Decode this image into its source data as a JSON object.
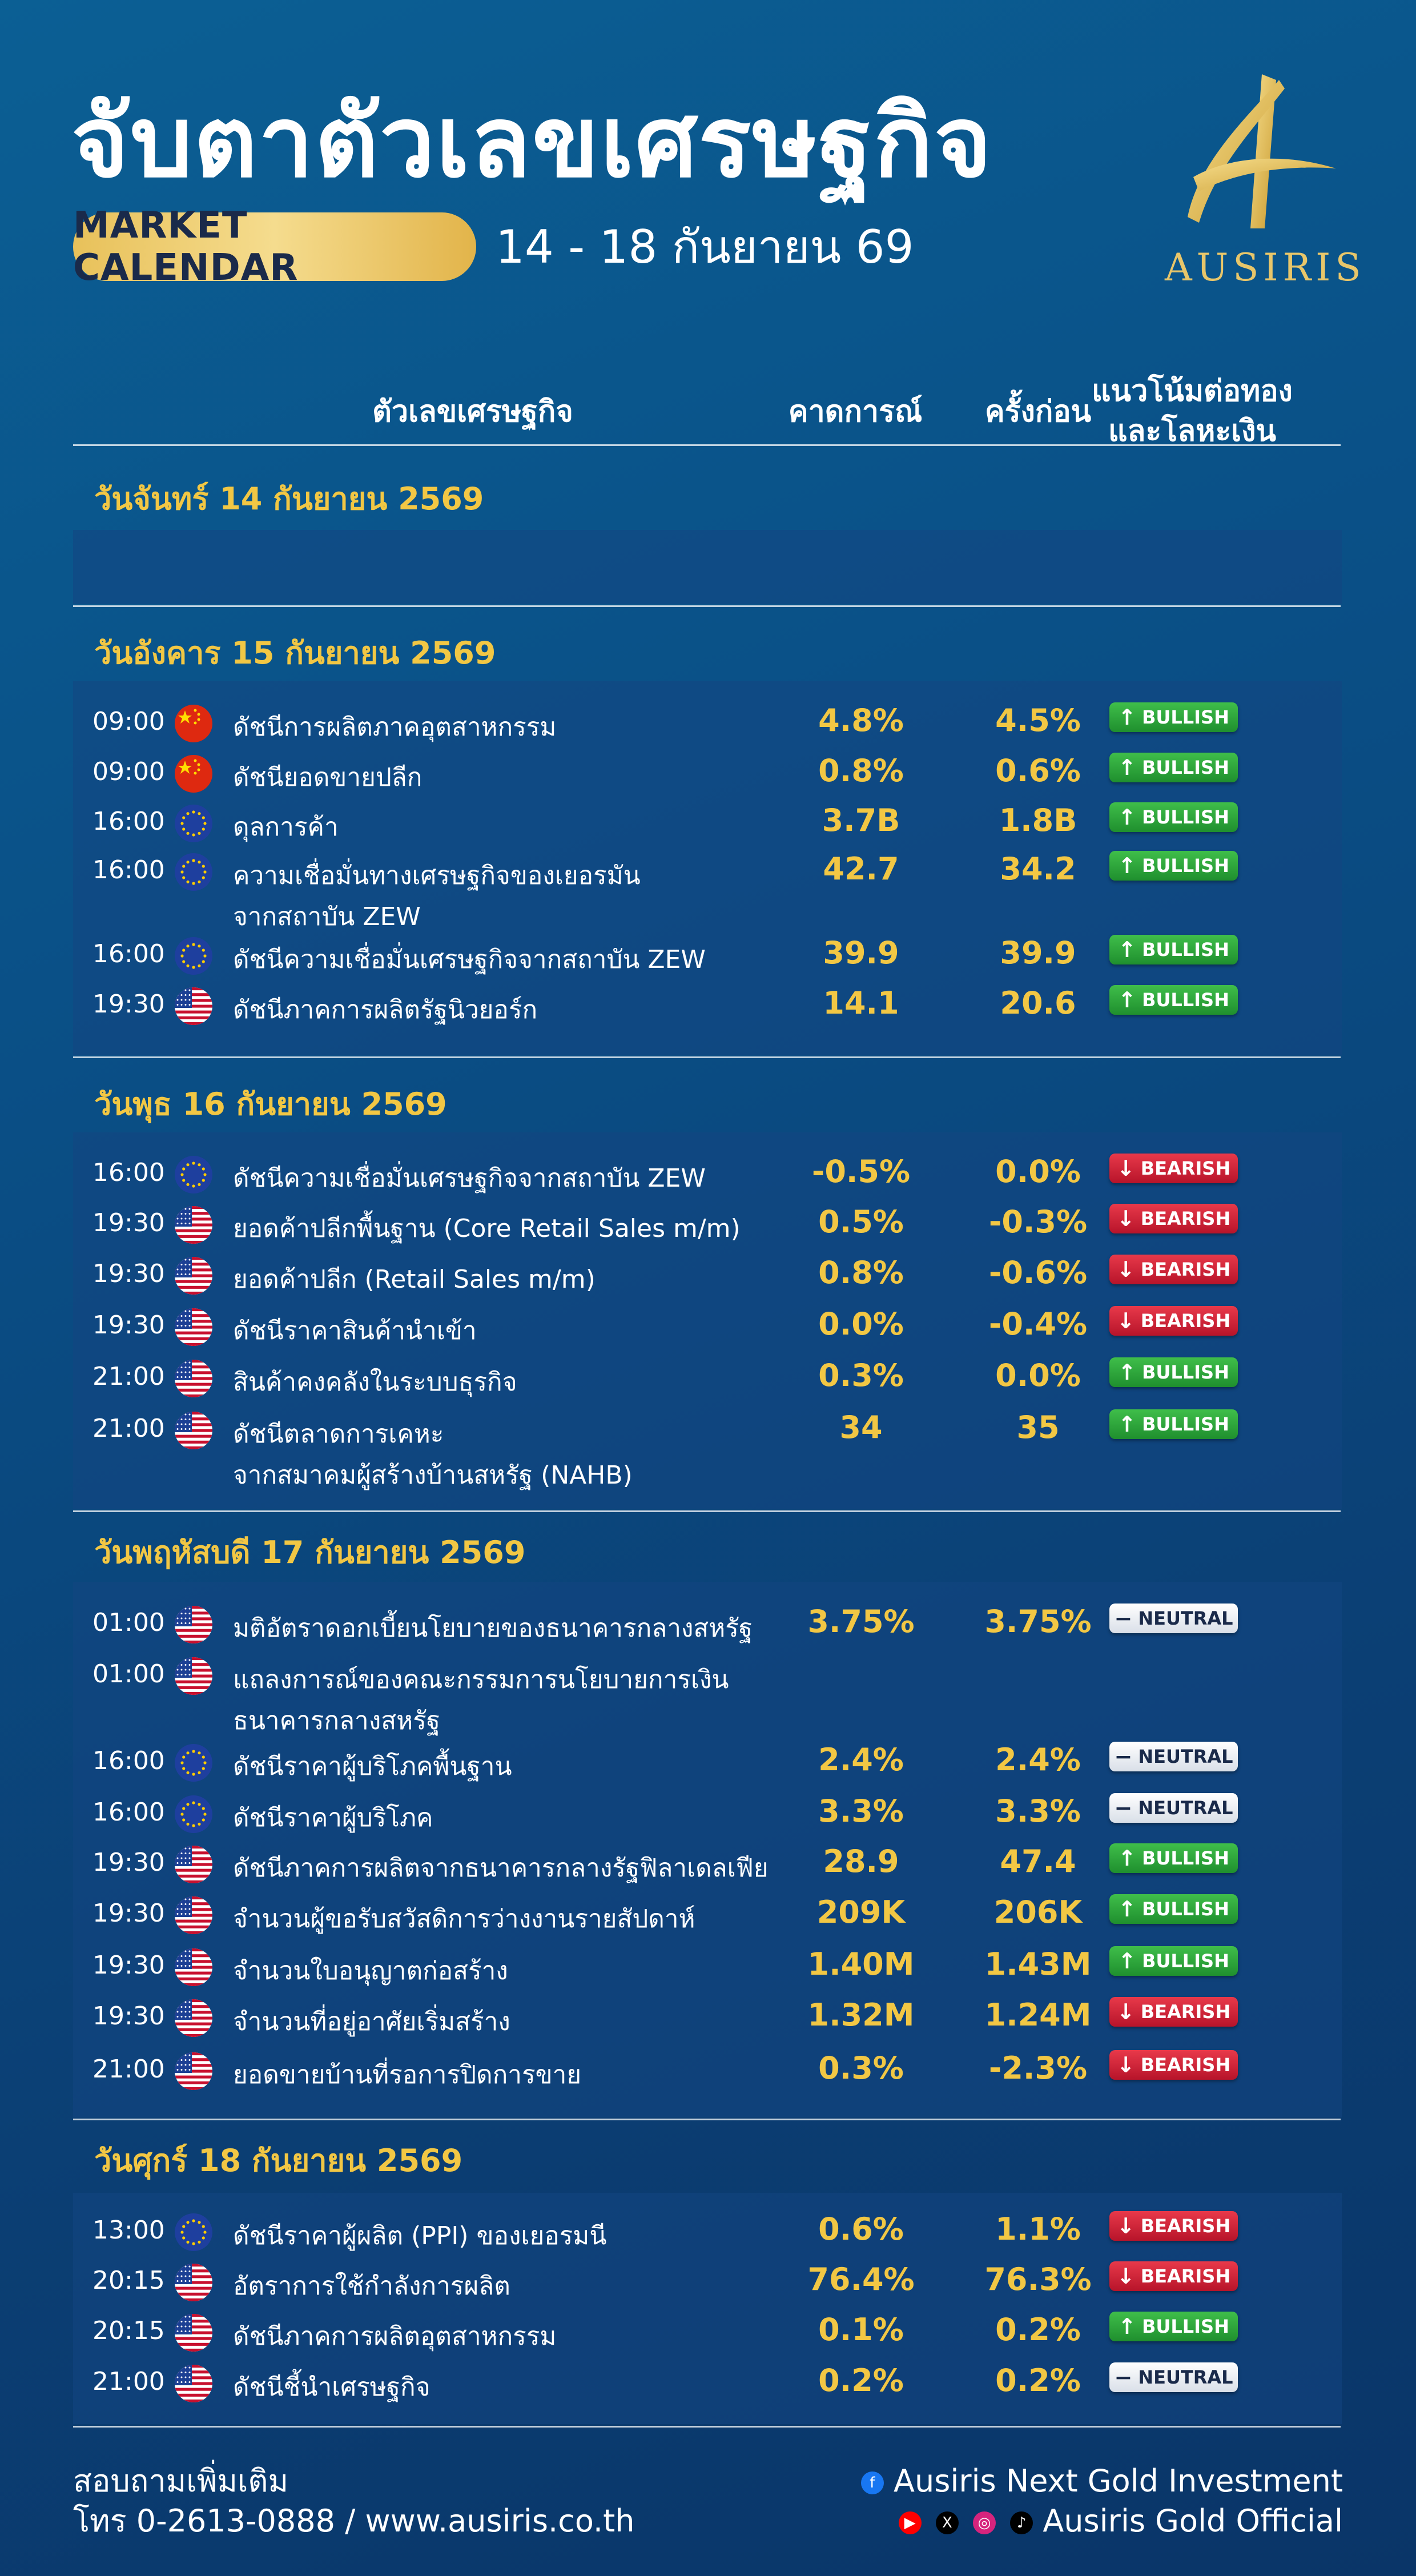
{
  "header": {
    "title": "จับตาตัวเลขเศรษฐกิจ",
    "badge": "MARKET CALENDAR",
    "date_range": "14 - 18 กันยายน 69",
    "logo_text": "AUSIRIS"
  },
  "columns": {
    "indicator": "ตัวเลขเศรษฐกิจ",
    "forecast": "คาดการณ์",
    "previous": "ครั้งก่อน",
    "trend_line1": "แนวโน้มต่อทอง",
    "trend_line2": "และโลหะเงิน"
  },
  "badges": {
    "bull": "BULLISH",
    "bear": "BEARISH",
    "neutral": "NEUTRAL"
  },
  "colors": {
    "accent_gold": "#f2c744",
    "bullish": "#2aa53a",
    "bearish": "#d0233a",
    "neutral": "#ffffff"
  },
  "days": [
    {
      "title": "วันจันทร์ 14 กันยายน 2569",
      "rows": []
    },
    {
      "title": "วันอังคาร 15 กันยายน 2569",
      "rows": [
        {
          "time": "09:00",
          "flag": "cn",
          "name": "ดัชนีการผลิตภาคอุตสาหกรรม",
          "forecast": "4.8%",
          "previous": "4.5%",
          "trend": "bull"
        },
        {
          "time": "09:00",
          "flag": "cn",
          "name": "ดัชนียอดขายปลีก",
          "forecast": "0.8%",
          "previous": "0.6%",
          "trend": "bull"
        },
        {
          "time": "16:00",
          "flag": "eu",
          "name": "ดุลการค้า",
          "forecast": "3.7B",
          "previous": "1.8B",
          "trend": "bull"
        },
        {
          "time": "16:00",
          "flag": "eu",
          "name": "ความเชื่อมั่นทางเศรษฐกิจของเยอรมัน",
          "name2": "จากสถาบัน ZEW",
          "forecast": "42.7",
          "previous": "34.2",
          "trend": "bull"
        },
        {
          "time": "16:00",
          "flag": "eu",
          "name": "ดัชนีความเชื่อมั่นเศรษฐกิจจากสถาบัน ZEW",
          "forecast": "39.9",
          "previous": "39.9",
          "trend": "bull"
        },
        {
          "time": "19:30",
          "flag": "us",
          "name": "ดัชนีภาคการผลิตรัฐนิวยอร์ก",
          "forecast": "14.1",
          "previous": "20.6",
          "trend": "bull"
        }
      ]
    },
    {
      "title": "วันพุธ 16 กันยายน 2569",
      "rows": [
        {
          "time": "16:00",
          "flag": "eu",
          "name": "ดัชนีความเชื่อมั่นเศรษฐกิจจากสถาบัน ZEW",
          "forecast": "-0.5%",
          "previous": "0.0%",
          "trend": "bear"
        },
        {
          "time": "19:30",
          "flag": "us",
          "name": "ยอดค้าปลีกพื้นฐาน (Core Retail Sales m/m)",
          "forecast": "0.5%",
          "previous": "-0.3%",
          "trend": "bear"
        },
        {
          "time": "19:30",
          "flag": "us",
          "name": "ยอดค้าปลีก (Retail Sales m/m)",
          "forecast": "0.8%",
          "previous": "-0.6%",
          "trend": "bear"
        },
        {
          "time": "19:30",
          "flag": "us",
          "name": "ดัชนีราคาสินค้านำเข้า",
          "forecast": "0.0%",
          "previous": "-0.4%",
          "trend": "bear"
        },
        {
          "time": "21:00",
          "flag": "us",
          "name": "สินค้าคงคลังในระบบธุรกิจ",
          "forecast": "0.3%",
          "previous": "0.0%",
          "trend": "bull"
        },
        {
          "time": "21:00",
          "flag": "us",
          "name": "ดัชนีตลาดการเคหะ",
          "name2": "จากสมาคมผู้สร้างบ้านสหรัฐ (NAHB)",
          "forecast": "34",
          "previous": "35",
          "trend": "bull"
        }
      ]
    },
    {
      "title": "วันพฤหัสบดี 17 กันยายน 2569",
      "rows": [
        {
          "time": "01:00",
          "flag": "us",
          "name": "มติอัตราดอกเบี้ยนโยบายของธนาคารกลางสหรัฐ",
          "forecast": "3.75%",
          "previous": "3.75%",
          "trend": "neutral"
        },
        {
          "time": "01:00",
          "flag": "us",
          "name": "แถลงการณ์ของคณะกรรมการนโยบายการเงิน",
          "name2": "ธนาคารกลางสหรัฐ",
          "forecast": "",
          "previous": "",
          "trend": ""
        },
        {
          "time": "16:00",
          "flag": "eu",
          "name": "ดัชนีราคาผู้บริโภคพื้นฐาน",
          "forecast": "2.4%",
          "previous": "2.4%",
          "trend": "neutral"
        },
        {
          "time": "16:00",
          "flag": "eu",
          "name": "ดัชนีราคาผู้บริโภค",
          "forecast": "3.3%",
          "previous": "3.3%",
          "trend": "neutral"
        },
        {
          "time": "19:30",
          "flag": "us",
          "name": "ดัชนีภาคการผลิตจากธนาคารกลางรัฐฟิลาเดลเฟีย",
          "forecast": "28.9",
          "previous": "47.4",
          "trend": "bull"
        },
        {
          "time": "19:30",
          "flag": "us",
          "name": "จำนวนผู้ขอรับสวัสดิการว่างงานรายสัปดาห์",
          "forecast": "209K",
          "previous": "206K",
          "trend": "bull"
        },
        {
          "time": "19:30",
          "flag": "us",
          "name": "จำนวนใบอนุญาตก่อสร้าง",
          "forecast": "1.40M",
          "previous": "1.43M",
          "trend": "bull"
        },
        {
          "time": "19:30",
          "flag": "us",
          "name": "จำนวนที่อยู่อาศัยเริ่มสร้าง",
          "forecast": "1.32M",
          "previous": "1.24M",
          "trend": "bear"
        },
        {
          "time": "21:00",
          "flag": "us",
          "name": "ยอดขายบ้านที่รอการปิดการขาย",
          "forecast": "0.3%",
          "previous": "-2.3%",
          "trend": "bear"
        }
      ]
    },
    {
      "title": "วันศุกร์ 18 กันยายน 2569",
      "rows": [
        {
          "time": "13:00",
          "flag": "eu",
          "name": "ดัชนีราคาผู้ผลิต (PPI) ของเยอรมนี",
          "forecast": "0.6%",
          "previous": "1.1%",
          "trend": "bear"
        },
        {
          "time": "20:15",
          "flag": "us",
          "name": "อัตราการใช้กำลังการผลิต",
          "forecast": "76.4%",
          "previous": "76.3%",
          "trend": "bear"
        },
        {
          "time": "20:15",
          "flag": "us",
          "name": "ดัชนีภาคการผลิตอุตสาหกรรม",
          "forecast": "0.1%",
          "previous": "0.2%",
          "trend": "bull"
        },
        {
          "time": "21:00",
          "flag": "us",
          "name": "ดัชนีชี้นำเศรษฐกิจ",
          "forecast": "0.2%",
          "previous": "0.2%",
          "trend": "neutral"
        }
      ]
    }
  ],
  "footer": {
    "contact_title": "สอบถามเพิ่มเติม",
    "contact_line": "โทร 0-2613-0888 / www.ausiris.co.th",
    "facebook": "Ausiris Next Gold Investment",
    "social": "Ausiris Gold Official"
  }
}
